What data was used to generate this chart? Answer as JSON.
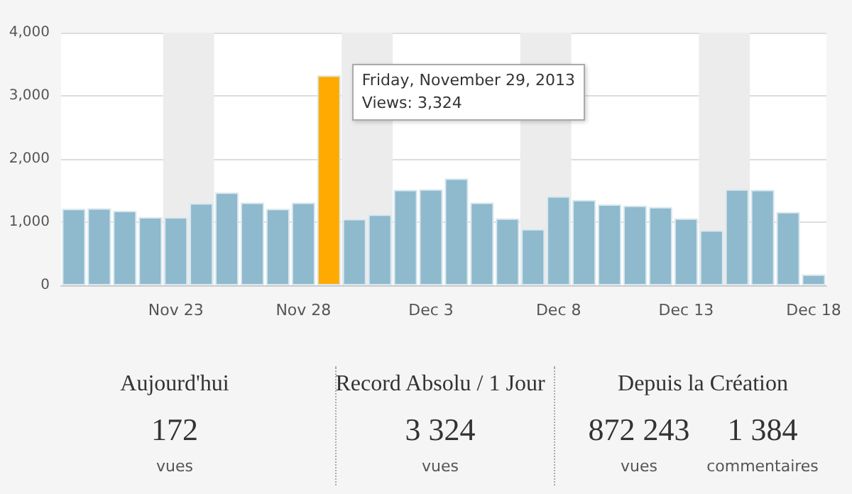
{
  "chart_data": {
    "type": "bar",
    "x": [
      "2013-11-19",
      "2013-11-20",
      "2013-11-21",
      "2013-11-22",
      "2013-11-23",
      "2013-11-24",
      "2013-11-25",
      "2013-11-26",
      "2013-11-27",
      "2013-11-28",
      "2013-11-29",
      "2013-11-30",
      "2013-12-01",
      "2013-12-02",
      "2013-12-03",
      "2013-12-04",
      "2013-12-05",
      "2013-12-06",
      "2013-12-07",
      "2013-12-08",
      "2013-12-09",
      "2013-12-10",
      "2013-12-11",
      "2013-12-12",
      "2013-12-13",
      "2013-12-14",
      "2013-12-15",
      "2013-12-16",
      "2013-12-17",
      "2013-12-18"
    ],
    "values": [
      1210,
      1220,
      1180,
      1080,
      1080,
      1300,
      1470,
      1310,
      1210,
      1310,
      3324,
      1050,
      1120,
      1510,
      1520,
      1690,
      1310,
      1060,
      890,
      1410,
      1350,
      1280,
      1260,
      1240,
      1060,
      870,
      1520,
      1510,
      1160,
      172
    ],
    "colors": [
      "#8fb9cc",
      "#8fb9cc",
      "#8fb9cc",
      "#8fb9cc",
      "#8fb9cc",
      "#8fb9cc",
      "#8fb9cc",
      "#8fb9cc",
      "#8fb9cc",
      "#8fb9cc",
      "#ffaa00",
      "#8fb9cc",
      "#8fb9cc",
      "#8fb9cc",
      "#8fb9cc",
      "#8fb9cc",
      "#8fb9cc",
      "#8fb9cc",
      "#8fb9cc",
      "#8fb9cc",
      "#8fb9cc",
      "#8fb9cc",
      "#8fb9cc",
      "#8fb9cc",
      "#8fb9cc",
      "#8fb9cc",
      "#8fb9cc",
      "#8fb9cc",
      "#8fb9cc",
      "#8fb9cc"
    ],
    "xlim": [
      "2013-11-18T12:00",
      "2013-12-18T12:00"
    ],
    "xticks": [
      {
        "value": "2013-11-23",
        "label": "Nov 23"
      },
      {
        "value": "2013-11-28",
        "label": "Nov 28"
      },
      {
        "value": "2013-12-03",
        "label": "Dec 3"
      },
      {
        "value": "2013-12-08",
        "label": "Dec 8"
      },
      {
        "value": "2013-12-13",
        "label": "Dec 13"
      },
      {
        "value": "2013-12-18",
        "label": "Dec 18"
      }
    ],
    "ylim": [
      0,
      4000
    ],
    "yticks": [
      {
        "value": 0,
        "label": "0"
      },
      {
        "value": 1000,
        "label": "1,000"
      },
      {
        "value": 2000,
        "label": "2,000"
      },
      {
        "value": 3000,
        "label": "3,000"
      },
      {
        "value": 4000,
        "label": "4,000"
      }
    ],
    "grid": "y",
    "bands": [
      {
        "axis": "x",
        "from": "2013-11-22T12:00",
        "to": "2013-11-24T12:00",
        "color": "#ececec"
      },
      {
        "axis": "x",
        "from": "2013-11-29T12:00",
        "to": "2013-12-01T12:00",
        "color": "#ececec"
      },
      {
        "axis": "x",
        "from": "2013-12-06T12:00",
        "to": "2013-12-08T12:00",
        "color": "#ececec"
      },
      {
        "axis": "x",
        "from": "2013-12-13T12:00",
        "to": "2013-12-15T12:00",
        "color": "#ececec"
      }
    ],
    "annotations": [
      {
        "text": "Friday, November 29, 2013\nViews: 3,324",
        "x": "2013-11-29",
        "y": 3324
      },
      "Aujourd'hui",
      "172",
      "vues",
      "Record Absolu / 1 Jour",
      "3 324",
      "vues",
      "Depuis la Création",
      "872 243",
      "vues",
      "1 384",
      "commentaires"
    ]
  }
}
